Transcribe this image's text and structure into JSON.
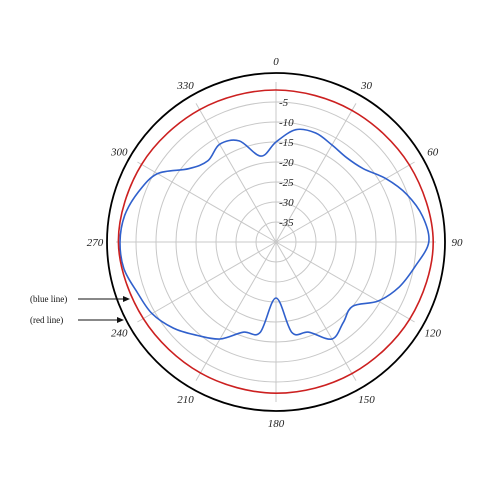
{
  "chart_data": {
    "type": "line",
    "coordinate_system": "polar",
    "angle_direction": "clockwise",
    "zero_direction": "top",
    "angle_ticks": [
      0,
      30,
      60,
      90,
      120,
      150,
      180,
      210,
      240,
      270,
      300,
      330
    ],
    "angle_tick_labels": [
      "0",
      "30",
      "60",
      "90",
      "120",
      "150",
      "180",
      "210",
      "240",
      "270",
      "300",
      "330"
    ],
    "radial_range": [
      -40,
      0
    ],
    "radial_ticks": [
      -5,
      -10,
      -15,
      -20,
      -25,
      -30,
      -35
    ],
    "radial_tick_labels": [
      "-5",
      "-10",
      "-15",
      "-20",
      "-25",
      "-30",
      "-35"
    ],
    "grid": true,
    "annotations": [
      {
        "text": "(blue line)",
        "target": "blue"
      },
      {
        "text": "(red line)",
        "target": "red"
      }
    ],
    "series": [
      {
        "color": "#3060cc",
        "theta": [
          0,
          10,
          20,
          30,
          40,
          50,
          60,
          70,
          80,
          90,
          100,
          110,
          120,
          130,
          140,
          150,
          160,
          170,
          180,
          190,
          200,
          210,
          220,
          230,
          240,
          250,
          260,
          270,
          280,
          290,
          300,
          310,
          320,
          330,
          340,
          350,
          360
        ],
        "r": [
          -15,
          -11.5,
          -11,
          -12,
          -12.5,
          -11.5,
          -8.3,
          -5.2,
          -2.8,
          -1.8,
          -4.7,
          -7.2,
          -10.5,
          -15,
          -13.8,
          -12,
          -16,
          -17,
          -26,
          -17,
          -16,
          -12,
          -9.5,
          -6.5,
          -4.2,
          -3.1,
          -1.4,
          -1.0,
          -1.6,
          -3.4,
          -5.8,
          -11.5,
          -13.5,
          -11.8,
          -13.1,
          -18.2,
          -15
        ]
      },
      {
        "color": "#cc2020",
        "theta": [
          0,
          30,
          60,
          90,
          120,
          150,
          180,
          210,
          240,
          270,
          300,
          330,
          360
        ],
        "r": [
          -2.0,
          -2.0,
          -1.5,
          -0.7,
          -1.4,
          -2.0,
          -2.2,
          -2.2,
          -1.7,
          -0.6,
          -1.2,
          -1.8,
          -2.0
        ]
      }
    ]
  }
}
